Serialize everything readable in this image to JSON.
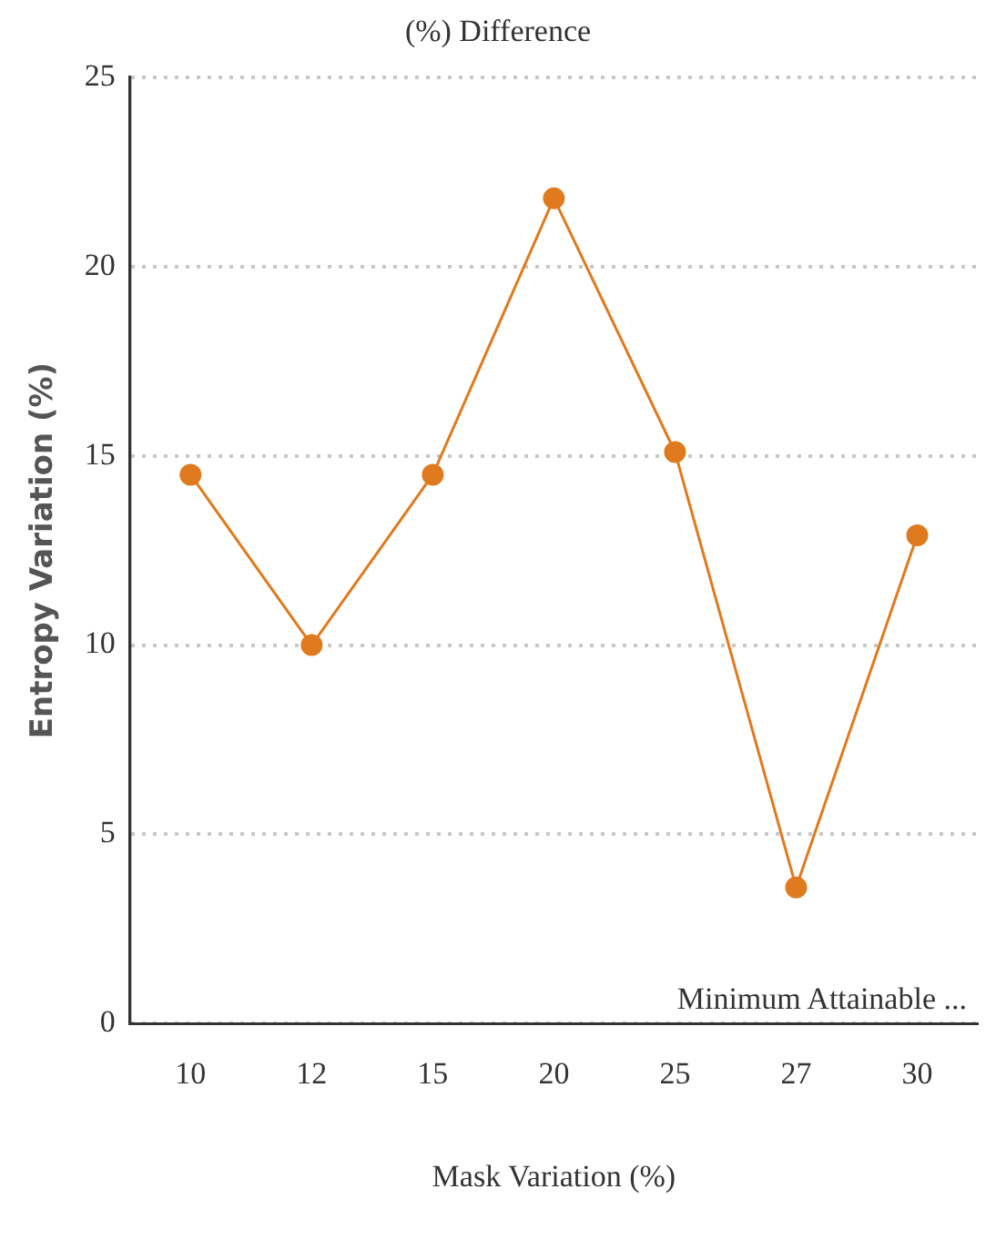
{
  "chart_data": {
    "type": "line",
    "title": "(%) Difference",
    "xlabel": "Mask Variation (%)",
    "ylabel": "Entropy Variation (%)",
    "categories": [
      "10",
      "12",
      "15",
      "20",
      "25",
      "27",
      "30"
    ],
    "series": [
      {
        "color": "#e07a1f",
        "values": [
          14.5,
          10.0,
          14.5,
          21.8,
          15.1,
          3.6,
          12.9
        ]
      }
    ],
    "ylim": [
      0,
      25
    ],
    "yticks": [
      0,
      5,
      10,
      15,
      20,
      25
    ],
    "grid": "y",
    "legend": false,
    "marker": "circle",
    "line_style": "solid",
    "annotations": [
      "Minimum Attainable ..."
    ]
  }
}
